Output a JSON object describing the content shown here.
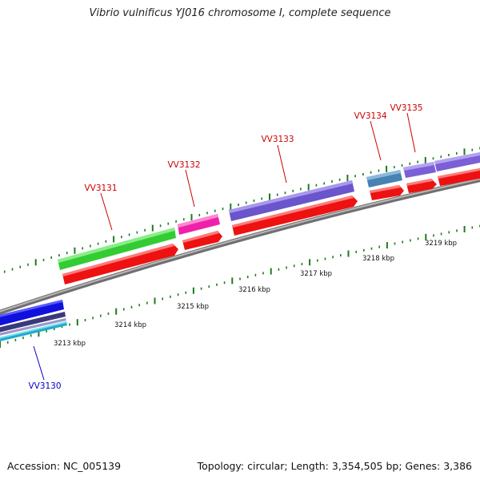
{
  "title": "Vibrio vulnificus YJ016 chromosome I, complete sequence",
  "accession_text": "Accession: NC_005139",
  "summary_text": "Topology: circular; Length: 3,354,505 bp; Genes: 3,386",
  "ruler": {
    "unit": "kbp",
    "labels": [
      "3213 kbp",
      "3214 kbp",
      "3215 kbp",
      "3216 kbp",
      "3217 kbp",
      "3218 kbp",
      "3219 kbp"
    ]
  },
  "colors": {
    "backbone": "#8a8a8a",
    "tick": "#1f7a1f",
    "cds": "#ee1111",
    "label_red": "#cc0000",
    "label_blue": "#0000cc"
  },
  "genes": [
    {
      "name": "VV3130",
      "color": "#1111dd",
      "label_color": "#0000cc",
      "strand": "forward"
    },
    {
      "name": "VV3131",
      "color": "#33cc33",
      "label_color": "#cc0000",
      "strand": "reverse"
    },
    {
      "name": "VV3132",
      "color": "#ee22aa",
      "label_color": "#cc0000",
      "strand": "reverse"
    },
    {
      "name": "VV3133",
      "color": "#6a55cc",
      "label_color": "#cc0000",
      "strand": "reverse"
    },
    {
      "name": "VV3134",
      "color": "#4682b4",
      "label_color": "#cc0000",
      "strand": "reverse"
    },
    {
      "name": "VV3135",
      "color": "#7b5fd6",
      "label_color": "#cc0000",
      "strand": "reverse"
    }
  ]
}
